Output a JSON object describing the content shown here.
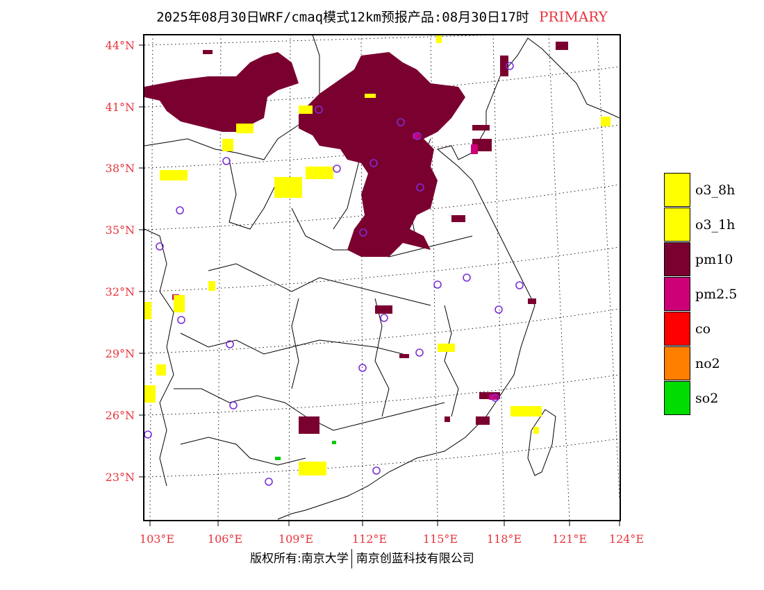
{
  "header": {
    "title": "2025年08月30日WRF/cmaq模式12km预报产品:08月30日17时",
    "tag": "PRIMARY",
    "tag_color": "#e8333b"
  },
  "map": {
    "lat_ticks": [
      "44°N",
      "41°N",
      "38°N",
      "35°N",
      "32°N",
      "29°N",
      "26°N",
      "23°N"
    ],
    "lon_ticks": [
      "103°E",
      "106°E",
      "109°E",
      "112°E",
      "115°E",
      "118°E",
      "121°E",
      "124°E"
    ],
    "tick_label_color": "#e8333b",
    "extent": {
      "lon_min": 102.7,
      "lon_max": 124.0,
      "lat_min": 21.0,
      "lat_max": 44.5
    }
  },
  "legend": [
    {
      "label": "o3_8h",
      "color": "#ffff00"
    },
    {
      "label": "o3_1h",
      "color": "#ffff00"
    },
    {
      "label": "pm10",
      "color": "#7a0030"
    },
    {
      "label": "pm2.5",
      "color": "#cc0077"
    },
    {
      "label": "co",
      "color": "#ff0000"
    },
    {
      "label": "no2",
      "color": "#ff7f00"
    },
    {
      "label": "so2",
      "color": "#00dd00"
    }
  ],
  "footer": {
    "left": "版权所有:南京大学",
    "right": "南京创蓝科技有限公司"
  }
}
